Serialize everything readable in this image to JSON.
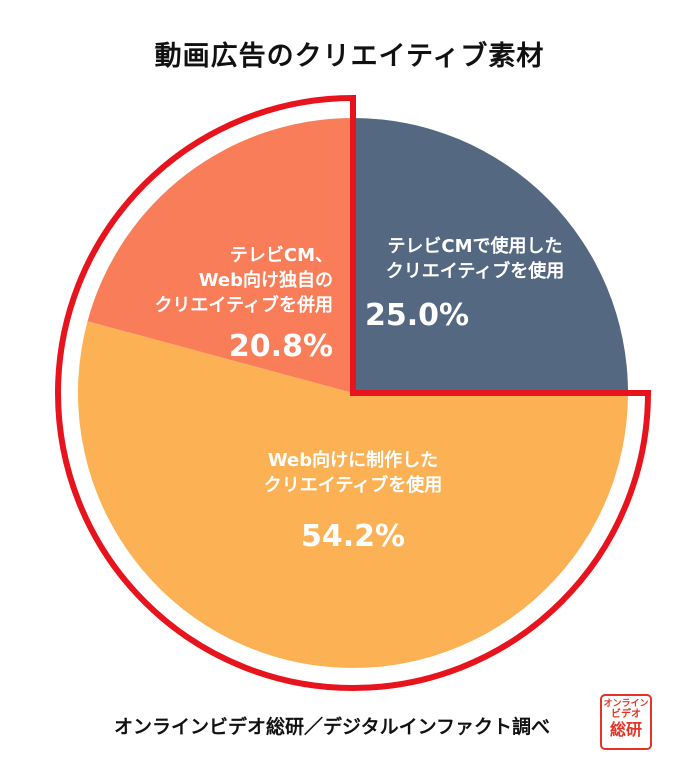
{
  "chart_data": {
    "type": "pie",
    "title": "動画広告のクリエイティブ素材",
    "categories": [
      "テレビCMで使用したクリエイティブを使用",
      "Web向けに制作したクリエイティブを使用",
      "テレビCM、Web向け独自のクリエイティブを併用"
    ],
    "values": [
      25.0,
      54.2,
      20.8
    ],
    "value_labels": [
      "25.0%",
      "54.2%",
      "20.8%"
    ],
    "label_lines": [
      [
        "テレビCMで使用した",
        "クリエイティブを使用"
      ],
      [
        "Web向けに制作した",
        "クリエイティブを使用"
      ],
      [
        "テレビCM、",
        "Web向け独自の",
        "クリエイティブを併用"
      ]
    ],
    "colors": [
      "#546882",
      "#fcb155",
      "#f97d58"
    ],
    "highlight": "Web向けに制作したクリエイティブを使用",
    "highlight_color": "#e8141d",
    "start_angle": "12 o'clock",
    "direction": "clockwise"
  },
  "source": "オンラインビデオ総研／デジタルインファクト調べ",
  "stamp": {
    "line1": "オンライン",
    "line2": "ビデオ",
    "line3": "総研",
    "color": "#e63326"
  }
}
